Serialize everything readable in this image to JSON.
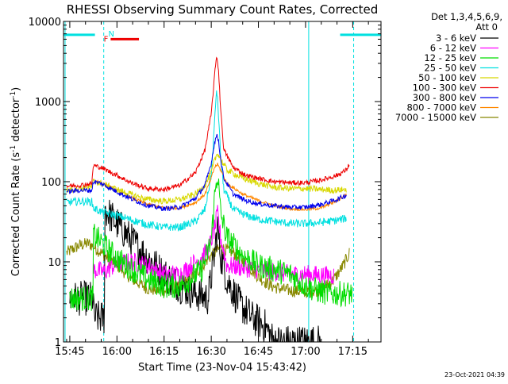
{
  "chart_data": {
    "type": "line",
    "title": "RHESSI Observing Summary Count Rates, Corrected",
    "xlabel": "Start Time (23-Nov-04 15:43:42)",
    "ylabel_main": "Corrected Count Rate (s",
    "ylabel_sup1": "-1",
    "ylabel_mid": " detector",
    "ylabel_sup2": "-1",
    "ylabel_end": ")",
    "y_scale": "log",
    "ylim": [
      1,
      10000
    ],
    "xlim_minutes": [
      -2.0,
      99.0
    ],
    "x_ticks": [
      {
        "t": 0,
        "label": "15:45"
      },
      {
        "t": 15,
        "label": "16:00"
      },
      {
        "t": 30,
        "label": "16:15"
      },
      {
        "t": 45,
        "label": "16:30"
      },
      {
        "t": 60,
        "label": "16:45"
      },
      {
        "t": 75,
        "label": "17:00"
      },
      {
        "t": 90,
        "label": "17:15"
      }
    ],
    "y_ticks": [
      {
        "v": 1,
        "label": "1"
      },
      {
        "v": 10,
        "label": "10"
      },
      {
        "v": 100,
        "label": "100"
      },
      {
        "v": 1000,
        "label": "1000"
      },
      {
        "v": 10000,
        "label": "10000"
      }
    ],
    "legend_header": [
      "Det 1,3,4,5,6,9,",
      "Att 0"
    ],
    "legend_position": "right",
    "series": [
      {
        "name": "3 - 6 keV",
        "color": "#000000",
        "points": [
          [
            0,
            3.5
          ],
          [
            7.5,
            3.5
          ],
          [
            7.7,
            2
          ],
          [
            11,
            2
          ],
          [
            11.2,
            45
          ],
          [
            15,
            30
          ],
          [
            20,
            18
          ],
          [
            25,
            11
          ],
          [
            30,
            7
          ],
          [
            35,
            5
          ],
          [
            40,
            4
          ],
          [
            44,
            3.5
          ],
          [
            46,
            12
          ],
          [
            47,
            28
          ],
          [
            48,
            12
          ],
          [
            50,
            6
          ],
          [
            54,
            3
          ],
          [
            58,
            2
          ],
          [
            62,
            1.6
          ],
          [
            65,
            1
          ],
          [
            70,
            1
          ],
          [
            75,
            1
          ],
          [
            80,
            1
          ]
        ]
      },
      {
        "name": "6 - 12 keV",
        "color": "#ff00ff",
        "points": [
          [
            7.5,
            8
          ],
          [
            11,
            7.5
          ],
          [
            15,
            9.5
          ],
          [
            20,
            10
          ],
          [
            25,
            9
          ],
          [
            30,
            7
          ],
          [
            35,
            7
          ],
          [
            40,
            10
          ],
          [
            44,
            14
          ],
          [
            46,
            25
          ],
          [
            47,
            40
          ],
          [
            48,
            20
          ],
          [
            50,
            9
          ],
          [
            55,
            8.5
          ],
          [
            60,
            8
          ],
          [
            65,
            7.5
          ],
          [
            70,
            7
          ],
          [
            75,
            7
          ],
          [
            80,
            6.8
          ],
          [
            84,
            6.8
          ]
        ]
      },
      {
        "name": "12 - 25 keV",
        "color": "#00dd00",
        "points": [
          [
            0,
            3.5
          ],
          [
            7.4,
            3.5
          ],
          [
            7.5,
            22
          ],
          [
            11,
            16
          ],
          [
            15,
            11
          ],
          [
            20,
            8
          ],
          [
            25,
            6
          ],
          [
            30,
            5
          ],
          [
            35,
            5
          ],
          [
            38,
            6
          ],
          [
            42,
            8
          ],
          [
            45,
            18
          ],
          [
            46,
            60
          ],
          [
            47,
            130
          ],
          [
            48,
            40
          ],
          [
            50,
            20
          ],
          [
            55,
            12
          ],
          [
            60,
            9
          ],
          [
            65,
            8
          ],
          [
            70,
            7
          ],
          [
            75,
            5
          ],
          [
            80,
            4.2
          ],
          [
            84,
            4
          ],
          [
            90,
            4
          ]
        ]
      },
      {
        "name": "25 - 50 keV",
        "color": "#00e0e0",
        "points": [
          [
            -1,
            55
          ],
          [
            3,
            57
          ],
          [
            7,
            56
          ],
          [
            7.5,
            47
          ],
          [
            10,
            42
          ],
          [
            15,
            38
          ],
          [
            20,
            33
          ],
          [
            25,
            29
          ],
          [
            30,
            27
          ],
          [
            35,
            27
          ],
          [
            40,
            32
          ],
          [
            43,
            45
          ],
          [
            45,
            120
          ],
          [
            46,
            500
          ],
          [
            46.7,
            1500
          ],
          [
            47.3,
            700
          ],
          [
            48,
            200
          ],
          [
            49,
            80
          ],
          [
            52,
            45
          ],
          [
            56,
            38
          ],
          [
            60,
            34
          ],
          [
            65,
            32
          ],
          [
            70,
            30
          ],
          [
            75,
            30
          ],
          [
            80,
            31
          ],
          [
            85,
            33
          ],
          [
            88,
            35
          ]
        ]
      },
      {
        "name": "50 - 100 keV",
        "color": "#d8d800",
        "points": [
          [
            -1,
            78
          ],
          [
            3,
            83
          ],
          [
            7,
            86
          ],
          [
            7.5,
            100
          ],
          [
            10,
            95
          ],
          [
            15,
            80
          ],
          [
            20,
            68
          ],
          [
            25,
            60
          ],
          [
            30,
            57
          ],
          [
            35,
            60
          ],
          [
            40,
            70
          ],
          [
            43,
            90
          ],
          [
            45,
            130
          ],
          [
            46,
            180
          ],
          [
            47,
            230
          ],
          [
            48,
            190
          ],
          [
            50,
            140
          ],
          [
            55,
            110
          ],
          [
            60,
            95
          ],
          [
            65,
            85
          ],
          [
            70,
            82
          ],
          [
            75,
            82
          ],
          [
            80,
            80
          ],
          [
            84,
            78
          ],
          [
            88,
            80
          ]
        ]
      },
      {
        "name": "100 - 300 keV",
        "color": "#ee0000",
        "points": [
          [
            -1,
            88
          ],
          [
            3,
            90
          ],
          [
            7,
            95
          ],
          [
            7.5,
            160
          ],
          [
            10,
            150
          ],
          [
            15,
            120
          ],
          [
            20,
            95
          ],
          [
            25,
            82
          ],
          [
            30,
            80
          ],
          [
            35,
            90
          ],
          [
            40,
            130
          ],
          [
            43,
            250
          ],
          [
            45,
            700
          ],
          [
            46,
            2000
          ],
          [
            46.7,
            3800
          ],
          [
            47.3,
            2500
          ],
          [
            48,
            800
          ],
          [
            49,
            250
          ],
          [
            52,
            150
          ],
          [
            56,
            120
          ],
          [
            60,
            110
          ],
          [
            65,
            100
          ],
          [
            70,
            97
          ],
          [
            75,
            97
          ],
          [
            80,
            105
          ],
          [
            85,
            120
          ],
          [
            88,
            140
          ],
          [
            89,
            170
          ]
        ]
      },
      {
        "name": "300 - 800 keV",
        "color": "#0000ee",
        "points": [
          [
            -1,
            75
          ],
          [
            3,
            78
          ],
          [
            7,
            78
          ],
          [
            7.5,
            100
          ],
          [
            10,
            95
          ],
          [
            15,
            75
          ],
          [
            20,
            60
          ],
          [
            25,
            50
          ],
          [
            30,
            46
          ],
          [
            35,
            48
          ],
          [
            40,
            62
          ],
          [
            43,
            90
          ],
          [
            45,
            170
          ],
          [
            46,
            300
          ],
          [
            46.7,
            380
          ],
          [
            47.3,
            330
          ],
          [
            48,
            190
          ],
          [
            49,
            110
          ],
          [
            52,
            70
          ],
          [
            56,
            58
          ],
          [
            60,
            53
          ],
          [
            65,
            50
          ],
          [
            70,
            48
          ],
          [
            75,
            48
          ],
          [
            80,
            52
          ],
          [
            85,
            60
          ],
          [
            88,
            68
          ]
        ]
      },
      {
        "name": "800 - 7000 keV",
        "color": "#ff8800",
        "points": [
          [
            7.5,
            105
          ],
          [
            10,
            97
          ],
          [
            15,
            78
          ],
          [
            20,
            62
          ],
          [
            25,
            52
          ],
          [
            30,
            47
          ],
          [
            35,
            47
          ],
          [
            40,
            55
          ],
          [
            43,
            70
          ],
          [
            45,
            110
          ],
          [
            46,
            150
          ],
          [
            47,
            165
          ],
          [
            48,
            140
          ],
          [
            50,
            95
          ],
          [
            55,
            70
          ],
          [
            60,
            58
          ],
          [
            65,
            50
          ],
          [
            70,
            46
          ],
          [
            75,
            45
          ],
          [
            80,
            47
          ],
          [
            85,
            58
          ],
          [
            88,
            70
          ]
        ]
      },
      {
        "name": "7000 - 15000 keV",
        "color": "#888800",
        "points": [
          [
            -1,
            13
          ],
          [
            3,
            16
          ],
          [
            6,
            17
          ],
          [
            8,
            15
          ],
          [
            11,
            12
          ],
          [
            15,
            9
          ],
          [
            20,
            6
          ],
          [
            25,
            4.6
          ],
          [
            30,
            4.3
          ],
          [
            35,
            5
          ],
          [
            40,
            7
          ],
          [
            44,
            11
          ],
          [
            48,
            15
          ],
          [
            52,
            13
          ],
          [
            56,
            9.5
          ],
          [
            60,
            6.5
          ],
          [
            64,
            5
          ],
          [
            68,
            4.5
          ],
          [
            72,
            4.3
          ],
          [
            76,
            4.2
          ],
          [
            80,
            4.5
          ],
          [
            84,
            6
          ],
          [
            87,
            9
          ],
          [
            89,
            13
          ]
        ]
      }
    ],
    "annotations": {
      "attenuator_bar_left": {
        "t0": -2.0,
        "t1": 8.0,
        "value": 6800
      },
      "attenuator_bar_right": {
        "t0": 86.0,
        "t1": 99.0,
        "value": 6800
      },
      "flare_label": "F",
      "flare_bar": {
        "t0": 13.0,
        "t1": 22.0,
        "value": 6000
      },
      "night_label": "N",
      "night_label_t": 13.2,
      "vertical_solid": [
        -1.5,
        76.0
      ],
      "vertical_dashed": [
        10.8,
        90.3
      ]
    }
  },
  "timestamp": "23-Oct-2021 04:39"
}
